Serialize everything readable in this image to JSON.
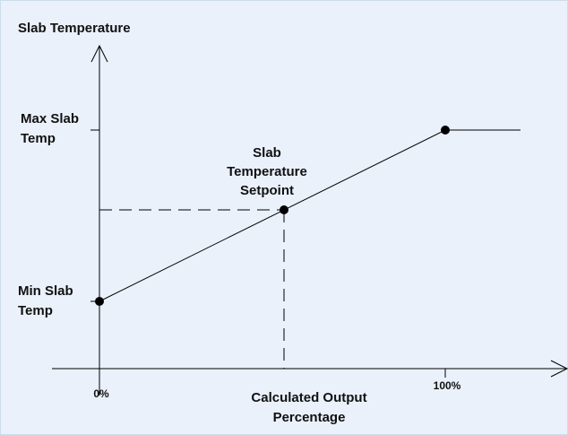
{
  "diagram": {
    "y_axis_label": "Slab Temperature",
    "x_axis_label_line1": "Calculated Output",
    "x_axis_label_line2": "Percentage",
    "max_label_line1": "Max Slab",
    "max_label_line2": "Temp",
    "min_label_line1": "Min Slab",
    "min_label_line2": "Temp",
    "setpoint_label_line1": "Slab",
    "setpoint_label_line2": "Temperature",
    "setpoint_label_line3": "Setpoint",
    "tick_0": "0%",
    "tick_100": "100%"
  },
  "colors": {
    "background": "#eaf1fb",
    "line": "#000000",
    "text": "#111111"
  }
}
